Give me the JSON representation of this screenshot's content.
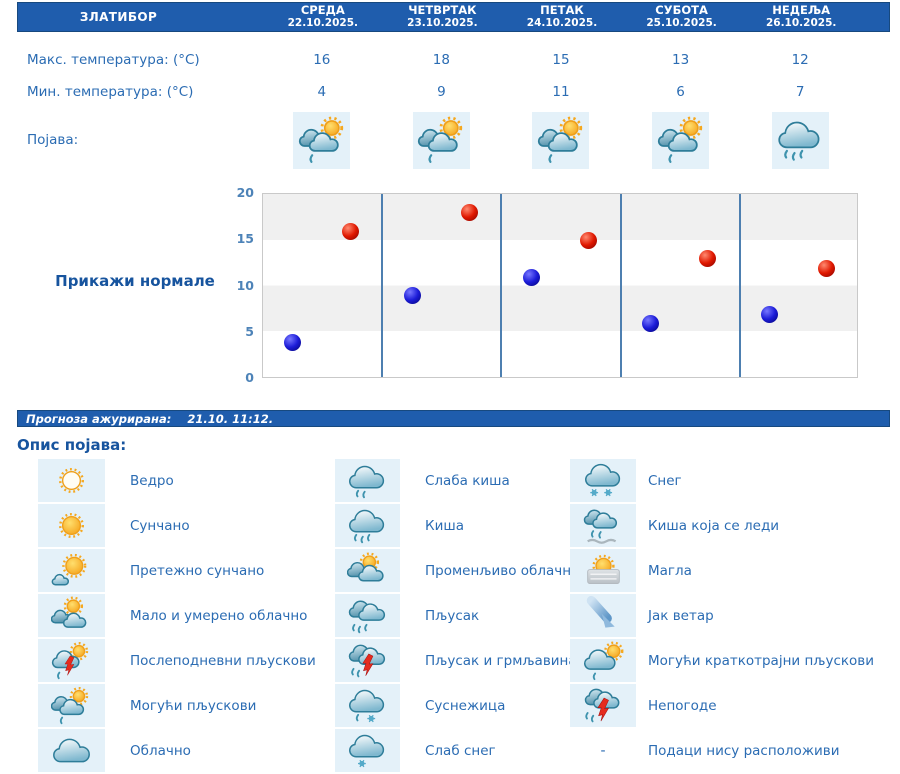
{
  "header": {
    "location": "ЗЛАТИБОР",
    "days": [
      {
        "name": "СРЕДА",
        "date": "22.10.2025."
      },
      {
        "name": "ЧЕТВРТАК",
        "date": "23.10.2025."
      },
      {
        "name": "ПЕТАК",
        "date": "24.10.2025."
      },
      {
        "name": "СУБОТА",
        "date": "25.10.2025."
      },
      {
        "name": "НЕДЕЉА",
        "date": "26.10.2025."
      }
    ]
  },
  "table": {
    "max_label": "Макс. температура: (°C)",
    "min_label": "Мин. температура: (°C)",
    "phenomena_label": "Појава:",
    "max_values": [
      16,
      18,
      15,
      13,
      12
    ],
    "min_values": [
      4,
      9,
      11,
      6,
      7
    ],
    "phenomena_icons": [
      "partly-cloudy-showers-icon",
      "partly-cloudy-showers-icon",
      "partly-cloudy-showers-icon",
      "partly-cloudy-showers-icon",
      "rain-icon"
    ]
  },
  "chart": {
    "normals_button_label": "Прикажи нормале"
  },
  "chart_data": {
    "type": "scatter",
    "categories": [
      "22.10.2025.",
      "23.10.2025.",
      "24.10.2025.",
      "25.10.2025.",
      "26.10.2025."
    ],
    "series": [
      {
        "name": "Макс. температура (°C)",
        "values": [
          16,
          18,
          15,
          13,
          12
        ],
        "color": "#e01800",
        "color_light": "#ff8a70",
        "color_dark": "#7e0000"
      },
      {
        "name": "Мин. температура (°C)",
        "values": [
          4,
          9,
          11,
          6,
          7
        ],
        "color": "#1c1cd8",
        "color_light": "#7878ff",
        "color_dark": "#000070"
      }
    ],
    "ylim": [
      0,
      20
    ],
    "yticks": [
      20,
      15,
      10,
      5,
      0
    ],
    "grid": "alternating horizontal bands, vertical day separators",
    "legend_position": "none"
  },
  "status": {
    "label": "Прогноза ажурирана:",
    "value": "21.10. 11:12."
  },
  "legend": {
    "title": "Опис појава:",
    "no_data_symbol": "-",
    "columns": [
      [
        {
          "icon": "clear-icon",
          "label": "Ведро"
        },
        {
          "icon": "sunny-icon",
          "label": "Сунчано"
        },
        {
          "icon": "mostly-sunny-icon",
          "label": "Претежно сунчано"
        },
        {
          "icon": "partly-cloudy-icon",
          "label": "Мало и умерено облачно"
        },
        {
          "icon": "afternoon-showers-icon",
          "label": "Послеподневни пљускови"
        },
        {
          "icon": "possible-showers-icon",
          "label": "Могући пљускови"
        },
        {
          "icon": "cloudy-icon",
          "label": "Облачно"
        }
      ],
      [
        {
          "icon": "light-rain-icon",
          "label": "Слаба киша"
        },
        {
          "icon": "rain-icon",
          "label": "Киша"
        },
        {
          "icon": "variable-clouds-icon",
          "label": "Променљиво облачно"
        },
        {
          "icon": "heavy-showers-icon",
          "label": "Пљусак"
        },
        {
          "icon": "showers-thunder-icon",
          "label": "Пљусак и грмљавина"
        },
        {
          "icon": "sleet-icon",
          "label": "Суснежица"
        },
        {
          "icon": "light-snow-icon",
          "label": "Слаб снег"
        }
      ],
      [
        {
          "icon": "snow-icon",
          "label": "Снег"
        },
        {
          "icon": "freezing-rain-icon",
          "label": "Киша која се леди"
        },
        {
          "icon": "fog-icon",
          "label": "Магла"
        },
        {
          "icon": "strong-wind-icon",
          "label": "Јак ветар"
        },
        {
          "icon": "possible-brief-showers-icon",
          "label": "Могући краткотрајни пљускови"
        },
        {
          "icon": "storm-icon",
          "label": "Непогоде"
        },
        {
          "icon": "no-data",
          "label": "Подаци нису расположиви"
        }
      ]
    ]
  },
  "colors": {
    "header_bg": "#1f5dad",
    "text_blue": "#2b6cb3",
    "heading_blue": "#17549e",
    "axis_blue": "#4d83b8",
    "separator_blue": "#4d7fb0",
    "band_gray": "#f0f0f0",
    "tile_bg": "#e4f1f9"
  }
}
